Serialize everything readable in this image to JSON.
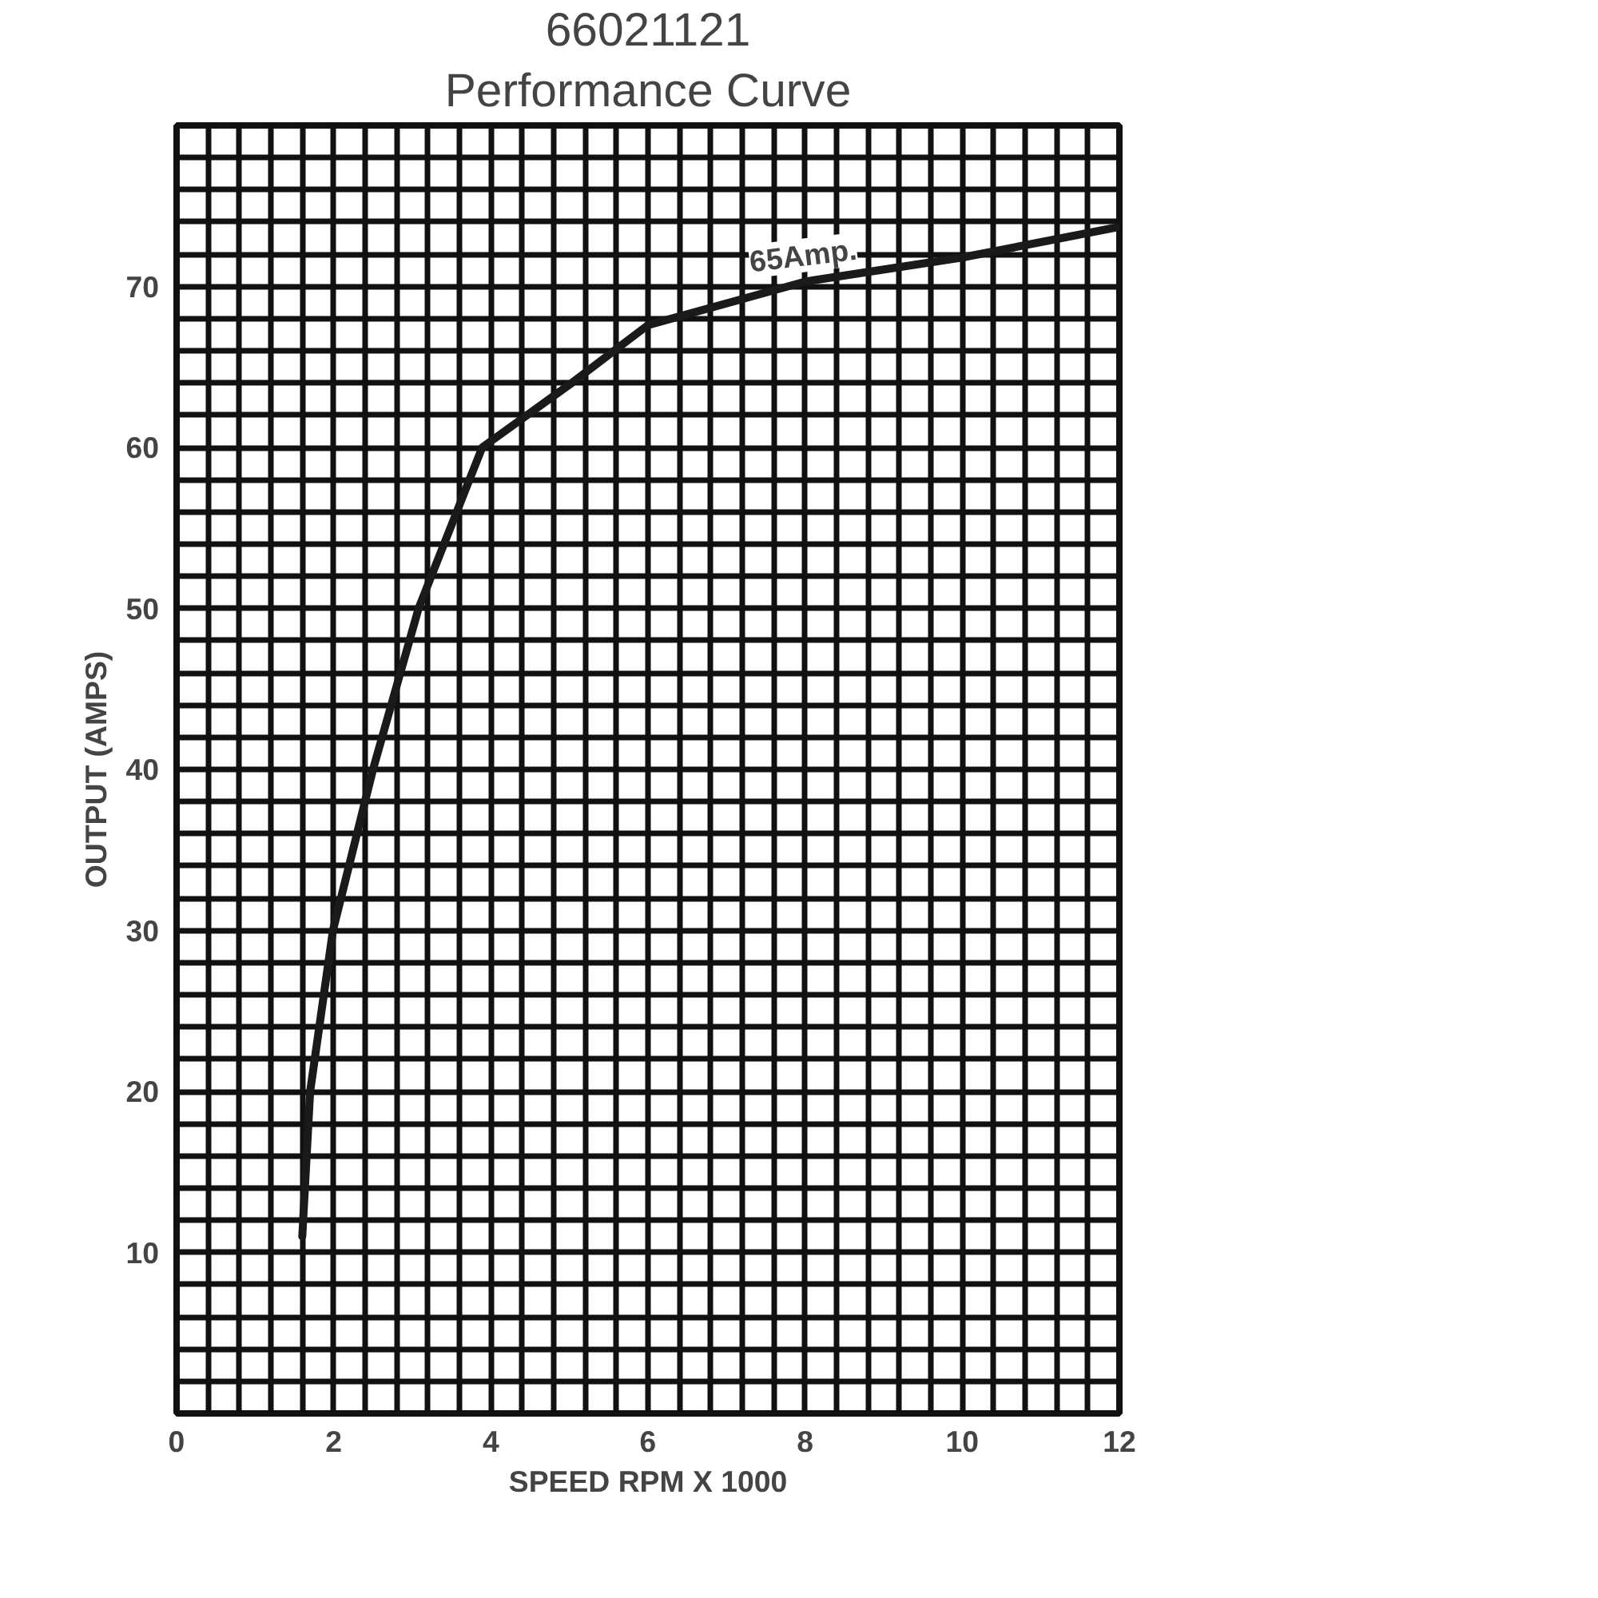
{
  "chart_data": {
    "type": "line",
    "title": "66021121",
    "subtitle": "Performance Curve",
    "xlabel": "SPEED RPM X 1000",
    "ylabel": "OUTPUT (AMPS)",
    "x": [
      1.6,
      1.7,
      1.99,
      2.5,
      3.08,
      3.89,
      5,
      6,
      8,
      10,
      12
    ],
    "series": [
      {
        "color": "#1a1a1a",
        "values": [
          11,
          20,
          30,
          40,
          50,
          60,
          63.9,
          67.6,
          70.3,
          71.8,
          73.7
        ]
      }
    ],
    "xlim": [
      0,
      12
    ],
    "ylim": [
      0,
      80
    ],
    "xticks": [
      0,
      {
        "value": 0.4,
        "label": null
      },
      {
        "value": 0.8,
        "label": null
      },
      {
        "value": 1.2,
        "label": null
      },
      {
        "value": 1.6,
        "label": null
      },
      2,
      {
        "value": 2.4,
        "label": null
      },
      {
        "value": 2.8,
        "label": null
      },
      {
        "value": 3.2,
        "label": null
      },
      {
        "value": 3.6,
        "label": null
      },
      4,
      {
        "value": 4.4,
        "label": null
      },
      {
        "value": 4.8,
        "label": null
      },
      {
        "value": 5.2,
        "label": null
      },
      {
        "value": 5.6,
        "label": null
      },
      6,
      {
        "value": 6.4,
        "label": null
      },
      {
        "value": 6.8,
        "label": null
      },
      {
        "value": 7.2,
        "label": null
      },
      {
        "value": 7.6,
        "label": null
      },
      8,
      {
        "value": 8.4,
        "label": null
      },
      {
        "value": 8.8,
        "label": null
      },
      {
        "value": 9.2,
        "label": null
      },
      {
        "value": 9.6,
        "label": null
      },
      10,
      {
        "value": 10.4,
        "label": null
      },
      {
        "value": 10.8,
        "label": null
      },
      {
        "value": 11.2,
        "label": null
      },
      {
        "value": 11.6,
        "label": null
      },
      12
    ],
    "yticks": [
      {
        "value": 0,
        "label": null
      },
      {
        "value": 2,
        "label": null
      },
      {
        "value": 4,
        "label": null
      },
      {
        "value": 6,
        "label": null
      },
      {
        "value": 8,
        "label": null
      },
      10,
      {
        "value": 12,
        "label": null
      },
      {
        "value": 14,
        "label": null
      },
      {
        "value": 16,
        "label": null
      },
      {
        "value": 18,
        "label": null
      },
      20,
      {
        "value": 22,
        "label": null
      },
      {
        "value": 24,
        "label": null
      },
      {
        "value": 26,
        "label": null
      },
      {
        "value": 28,
        "label": null
      },
      30,
      {
        "value": 32,
        "label": null
      },
      {
        "value": 34,
        "label": null
      },
      {
        "value": 36,
        "label": null
      },
      {
        "value": 38,
        "label": null
      },
      40,
      {
        "value": 42,
        "label": null
      },
      {
        "value": 44,
        "label": null
      },
      {
        "value": 46,
        "label": null
      },
      {
        "value": 48,
        "label": null
      },
      50,
      {
        "value": 52,
        "label": null
      },
      {
        "value": 54,
        "label": null
      },
      {
        "value": 56,
        "label": null
      },
      {
        "value": 58,
        "label": null
      },
      60,
      {
        "value": 62,
        "label": null
      },
      {
        "value": 64,
        "label": null
      },
      {
        "value": 66,
        "label": null
      },
      {
        "value": 68,
        "label": null
      },
      70,
      {
        "value": 72,
        "label": null
      },
      {
        "value": 74,
        "label": null
      },
      {
        "value": 76,
        "label": null
      },
      {
        "value": 78,
        "label": null
      },
      {
        "value": 80,
        "label": null
      }
    ],
    "grid": true,
    "line_style": "solid",
    "annotations": [
      {
        "text": "65Amp.",
        "x": 8,
        "y": 70.3
      }
    ]
  }
}
